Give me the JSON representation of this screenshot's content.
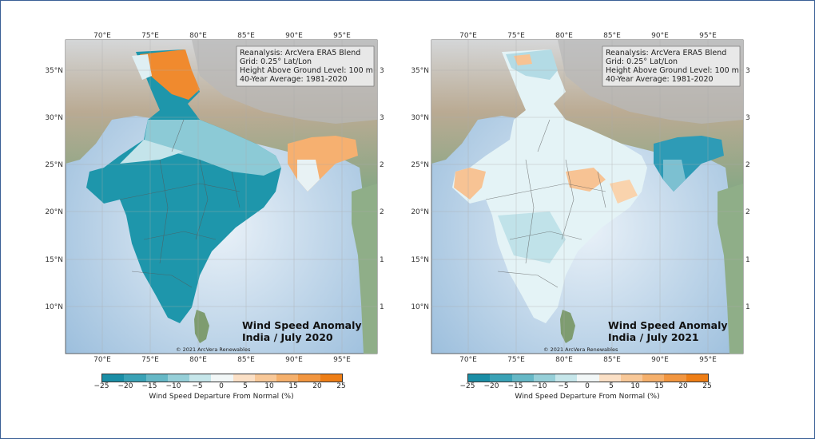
{
  "maps": [
    {
      "id": "left",
      "info_lines": [
        "Reanalysis: ArcVera ERA5 Blend",
        "Grid: 0.25° Lat/Lon",
        "Height Above Ground Level: 100 m",
        "40-Year Average: 1981-2020"
      ],
      "title_line1": "Wind Speed Anomaly",
      "title_line2": "India / July 2020",
      "credit": "© 2021 ArcVera Renewables",
      "lon_labels": [
        "70°E",
        "75°E",
        "80°E",
        "85°E",
        "90°E",
        "95°E"
      ],
      "lat_labels": [
        "35°N",
        "30°N",
        "25°N",
        "20°N",
        "15°N",
        "10°N"
      ],
      "anomaly_colors": {
        "dominant": "#1e96ab",
        "north": "#f08a2e",
        "east": "#f6b070"
      }
    },
    {
      "id": "right",
      "info_lines": [
        "Reanalysis: ArcVera ERA5 Blend",
        "Grid: 0.25° Lat/Lon",
        "Height Above Ground Level: 100 m",
        "40-Year Average: 1981-2020"
      ],
      "title_line1": "Wind Speed Anomaly",
      "title_line2": "India / July 2021",
      "credit": "© 2021 ArcVera Renewables",
      "lon_labels": [
        "70°E",
        "75°E",
        "80°E",
        "85°E",
        "90°E",
        "95°E"
      ],
      "lat_labels": [
        "35°N",
        "30°N",
        "25°N",
        "20°N",
        "15°N",
        "10°N"
      ],
      "anomaly_colors": {
        "dominant": "#d6eef2",
        "northeast": "#1e8fb0",
        "central": "#f7c394"
      }
    }
  ],
  "colorbar": {
    "ticks": [
      "−25",
      "−20",
      "−15",
      "−10",
      "−5",
      "0",
      "5",
      "10",
      "15",
      "20",
      "25"
    ],
    "label": "Wind Speed Departure From Normal (%)",
    "colors": [
      "#1a8ea6",
      "#3aa2b6",
      "#66b8c6",
      "#96cfd8",
      "#c6e6ea",
      "#f2f7f7",
      "#fbe0c6",
      "#f8c898",
      "#f5b06c",
      "#f29640",
      "#ee7e16"
    ]
  }
}
